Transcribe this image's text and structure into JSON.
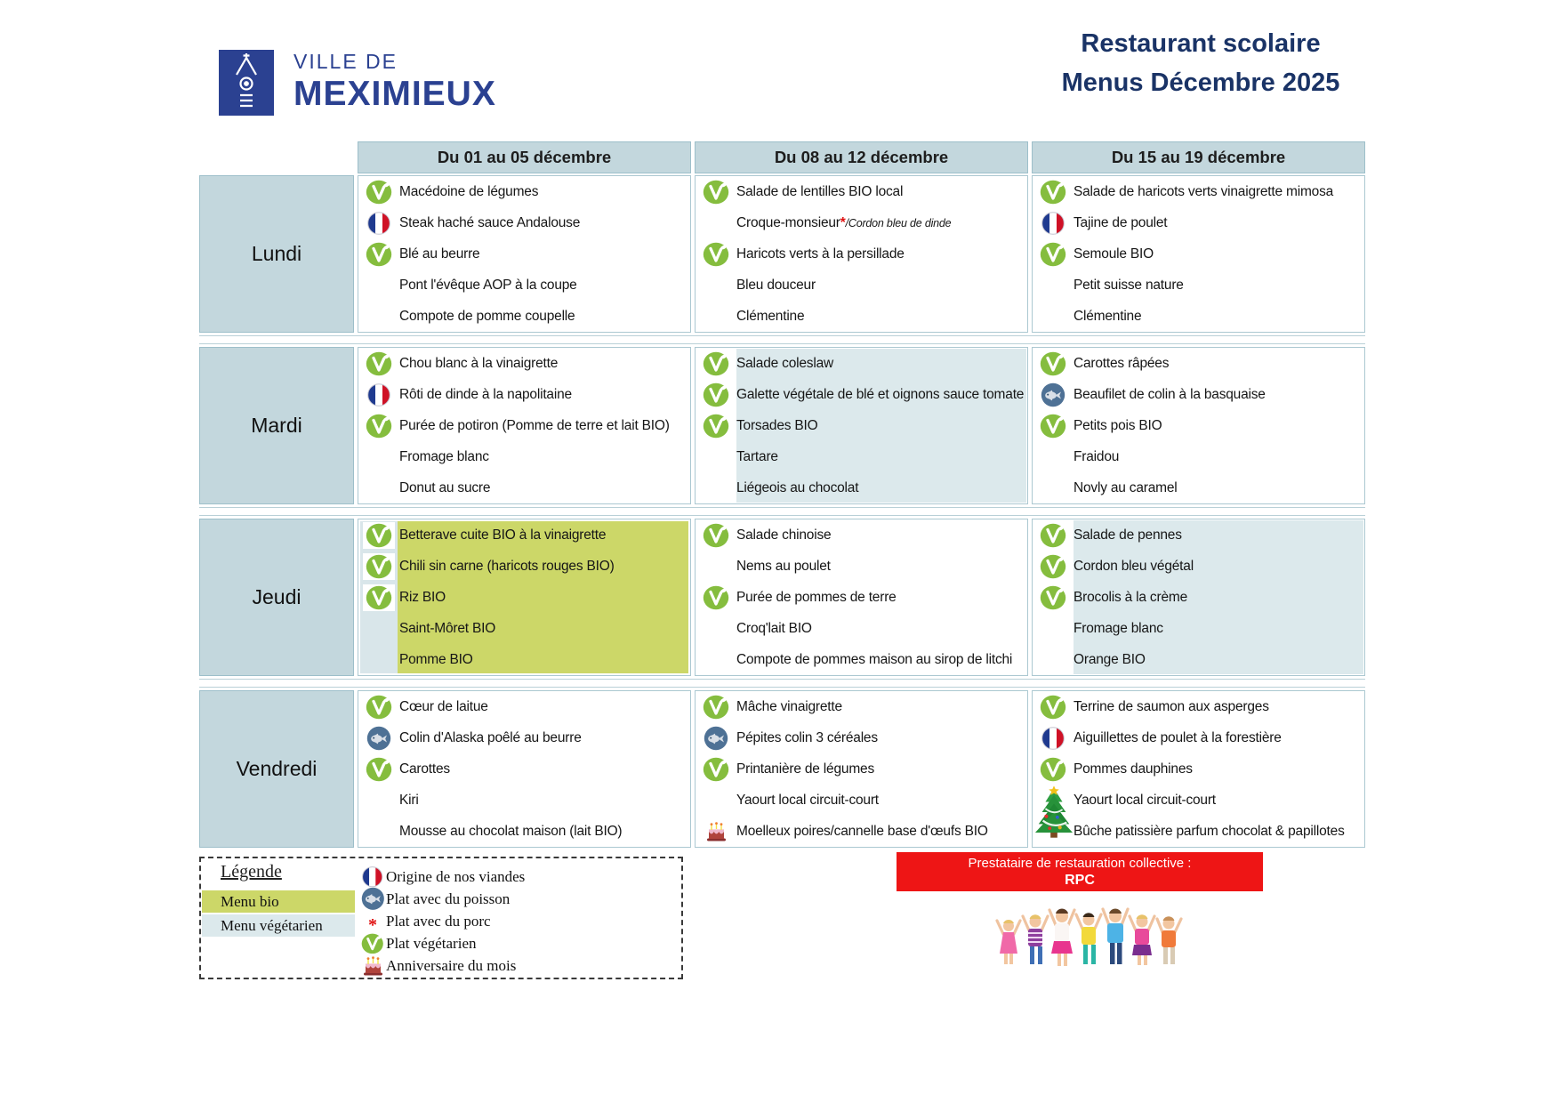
{
  "header": {
    "logo_line1": "VILLE DE",
    "logo_line2": "MEXIMIEUX",
    "title_line1": "Restaurant scolaire",
    "title_line2": "Menus Décembre 2025"
  },
  "table": {
    "week_headers": [
      "Du 01 au 05 décembre",
      "Du 08 au 12 décembre",
      "Du 15 au 19 décembre"
    ],
    "rows": [
      {
        "day": "Lundi",
        "cells": [
          {
            "highlight": null,
            "items": [
              {
                "icon": "veg",
                "text": "Macédoine de légumes"
              },
              {
                "icon": "flag",
                "text": "Steak haché sauce Andalouse"
              },
              {
                "icon": "veg",
                "text": "Blé au beurre"
              },
              {
                "icon": null,
                "text": "Pont l'évêque AOP à la coupe"
              },
              {
                "icon": null,
                "text": "Compote de pomme coupelle"
              }
            ]
          },
          {
            "highlight": null,
            "items": [
              {
                "icon": "veg",
                "text": "Salade de lentilles BIO local"
              },
              {
                "icon": null,
                "text": "Croque-monsieur",
                "star": "*",
                "suffix": "/Cordon bleu de dinde"
              },
              {
                "icon": "veg",
                "text": "Haricots verts à la persillade"
              },
              {
                "icon": null,
                "text": "Bleu douceur"
              },
              {
                "icon": null,
                "text": "Clémentine"
              }
            ]
          },
          {
            "highlight": null,
            "items": [
              {
                "icon": "veg",
                "text": "Salade de haricots verts vinaigrette mimosa"
              },
              {
                "icon": "flag",
                "text": "Tajine de poulet"
              },
              {
                "icon": "veg",
                "text": "Semoule BIO"
              },
              {
                "icon": null,
                "text": "Petit suisse nature"
              },
              {
                "icon": null,
                "text": "Clémentine"
              }
            ]
          }
        ]
      },
      {
        "day": "Mardi",
        "cells": [
          {
            "highlight": null,
            "items": [
              {
                "icon": "veg",
                "text": "Chou blanc à la vinaigrette"
              },
              {
                "icon": "flag",
                "text": "Rôti de dinde à la napolitaine"
              },
              {
                "icon": "veg",
                "text": "Purée de potiron (Pomme de terre et lait BIO)"
              },
              {
                "icon": null,
                "text": "Fromage blanc"
              },
              {
                "icon": null,
                "text": "Donut au sucre"
              }
            ]
          },
          {
            "highlight": "veg",
            "items": [
              {
                "icon": "veg",
                "text": "Salade coleslaw"
              },
              {
                "icon": "veg",
                "text": "Galette végétale de blé et oignons sauce tomate"
              },
              {
                "icon": "veg",
                "text": "Torsades BIO"
              },
              {
                "icon": null,
                "text": "Tartare"
              },
              {
                "icon": null,
                "text": "Liégeois au chocolat"
              }
            ]
          },
          {
            "highlight": null,
            "items": [
              {
                "icon": "veg",
                "text": "Carottes râpées"
              },
              {
                "icon": "fish",
                "text": "Beaufilet de colin à la basquaise"
              },
              {
                "icon": "veg",
                "text": "Petits pois BIO"
              },
              {
                "icon": null,
                "text": "Fraidou"
              },
              {
                "icon": null,
                "text": "Novly au caramel"
              }
            ]
          }
        ]
      },
      {
        "day": "Jeudi",
        "cells": [
          {
            "highlight": "bio",
            "items": [
              {
                "icon": "veg",
                "text": "Betterave cuite BIO à la vinaigrette"
              },
              {
                "icon": "veg",
                "text": "Chili sin carne (haricots rouges BIO)"
              },
              {
                "icon": "veg",
                "text": "Riz BIO"
              },
              {
                "icon": null,
                "text": "Saint-Môret BIO"
              },
              {
                "icon": null,
                "text": "Pomme BIO"
              }
            ]
          },
          {
            "highlight": null,
            "items": [
              {
                "icon": "veg",
                "text": "Salade chinoise"
              },
              {
                "icon": null,
                "text": "Nems au poulet"
              },
              {
                "icon": "veg",
                "text": "Purée de pommes de terre"
              },
              {
                "icon": null,
                "text": "Croq'lait BIO"
              },
              {
                "icon": null,
                "text": "Compote de pommes maison au sirop de litchi"
              }
            ]
          },
          {
            "highlight": "veg",
            "items": [
              {
                "icon": "veg",
                "text": "Salade de pennes"
              },
              {
                "icon": "veg",
                "text": "Cordon bleu végétal"
              },
              {
                "icon": "veg",
                "text": "Brocolis à la crème"
              },
              {
                "icon": null,
                "text": "Fromage blanc"
              },
              {
                "icon": null,
                "text": "Orange BIO"
              }
            ]
          }
        ]
      },
      {
        "day": "Vendredi",
        "cells": [
          {
            "highlight": null,
            "items": [
              {
                "icon": "veg",
                "text": "Cœur de laitue"
              },
              {
                "icon": "fish",
                "text": "Colin d'Alaska poêlé au beurre"
              },
              {
                "icon": "veg",
                "text": "Carottes"
              },
              {
                "icon": null,
                "text": "Kiri"
              },
              {
                "icon": null,
                "text": "Mousse au chocolat maison (lait BIO)"
              }
            ]
          },
          {
            "highlight": null,
            "items": [
              {
                "icon": "veg",
                "text": "Mâche vinaigrette"
              },
              {
                "icon": "fish",
                "text": "Pépites colin 3 céréales"
              },
              {
                "icon": "veg",
                "text": "Printanière de légumes"
              },
              {
                "icon": null,
                "text": "Yaourt local circuit-court"
              },
              {
                "icon": "cake",
                "text": "Moelleux poires/cannelle base d'œufs BIO"
              }
            ]
          },
          {
            "highlight": null,
            "items": [
              {
                "icon": "veg",
                "text": "Terrine de saumon aux asperges"
              },
              {
                "icon": "flag",
                "text": "Aiguillettes de poulet à la forestière"
              },
              {
                "icon": "veg",
                "text": "Pommes dauphines"
              },
              {
                "icon": "tree",
                "text": "Yaourt local circuit-court"
              },
              {
                "icon": null,
                "text": "Bûche patissière parfum chocolat & papillotes"
              }
            ]
          }
        ]
      }
    ]
  },
  "legend": {
    "title": "Légende",
    "swatches": [
      {
        "label": "Menu bio",
        "color": "#ccd768"
      },
      {
        "label": "Menu végétarien",
        "color": "#dce9ec"
      }
    ],
    "items": [
      {
        "icon": "meat-origin-icon",
        "label": "Origine de nos viandes"
      },
      {
        "icon": "fish-icon",
        "label": "Plat avec du poisson"
      },
      {
        "icon": "pork-asterisk-icon",
        "label": "Plat avec du porc"
      },
      {
        "icon": "vegetarian-icon",
        "label": "Plat végétarien"
      },
      {
        "icon": "birthday-cake-icon",
        "label": "Anniversaire du mois"
      }
    ]
  },
  "provider": {
    "line1": "Prestataire de restauration collective :",
    "line2": "RPC"
  },
  "colors": {
    "accent_navy": "#1a3366",
    "logo_blue": "#2b4191",
    "table_header_fill": "#c3d7dd",
    "menu_bio": "#ccd768",
    "menu_vegetarien": "#dce9ec",
    "banner_red": "#ee1515",
    "veg_icon_green": "#85bd3e",
    "fish_icon_blue": "#4e7195"
  }
}
